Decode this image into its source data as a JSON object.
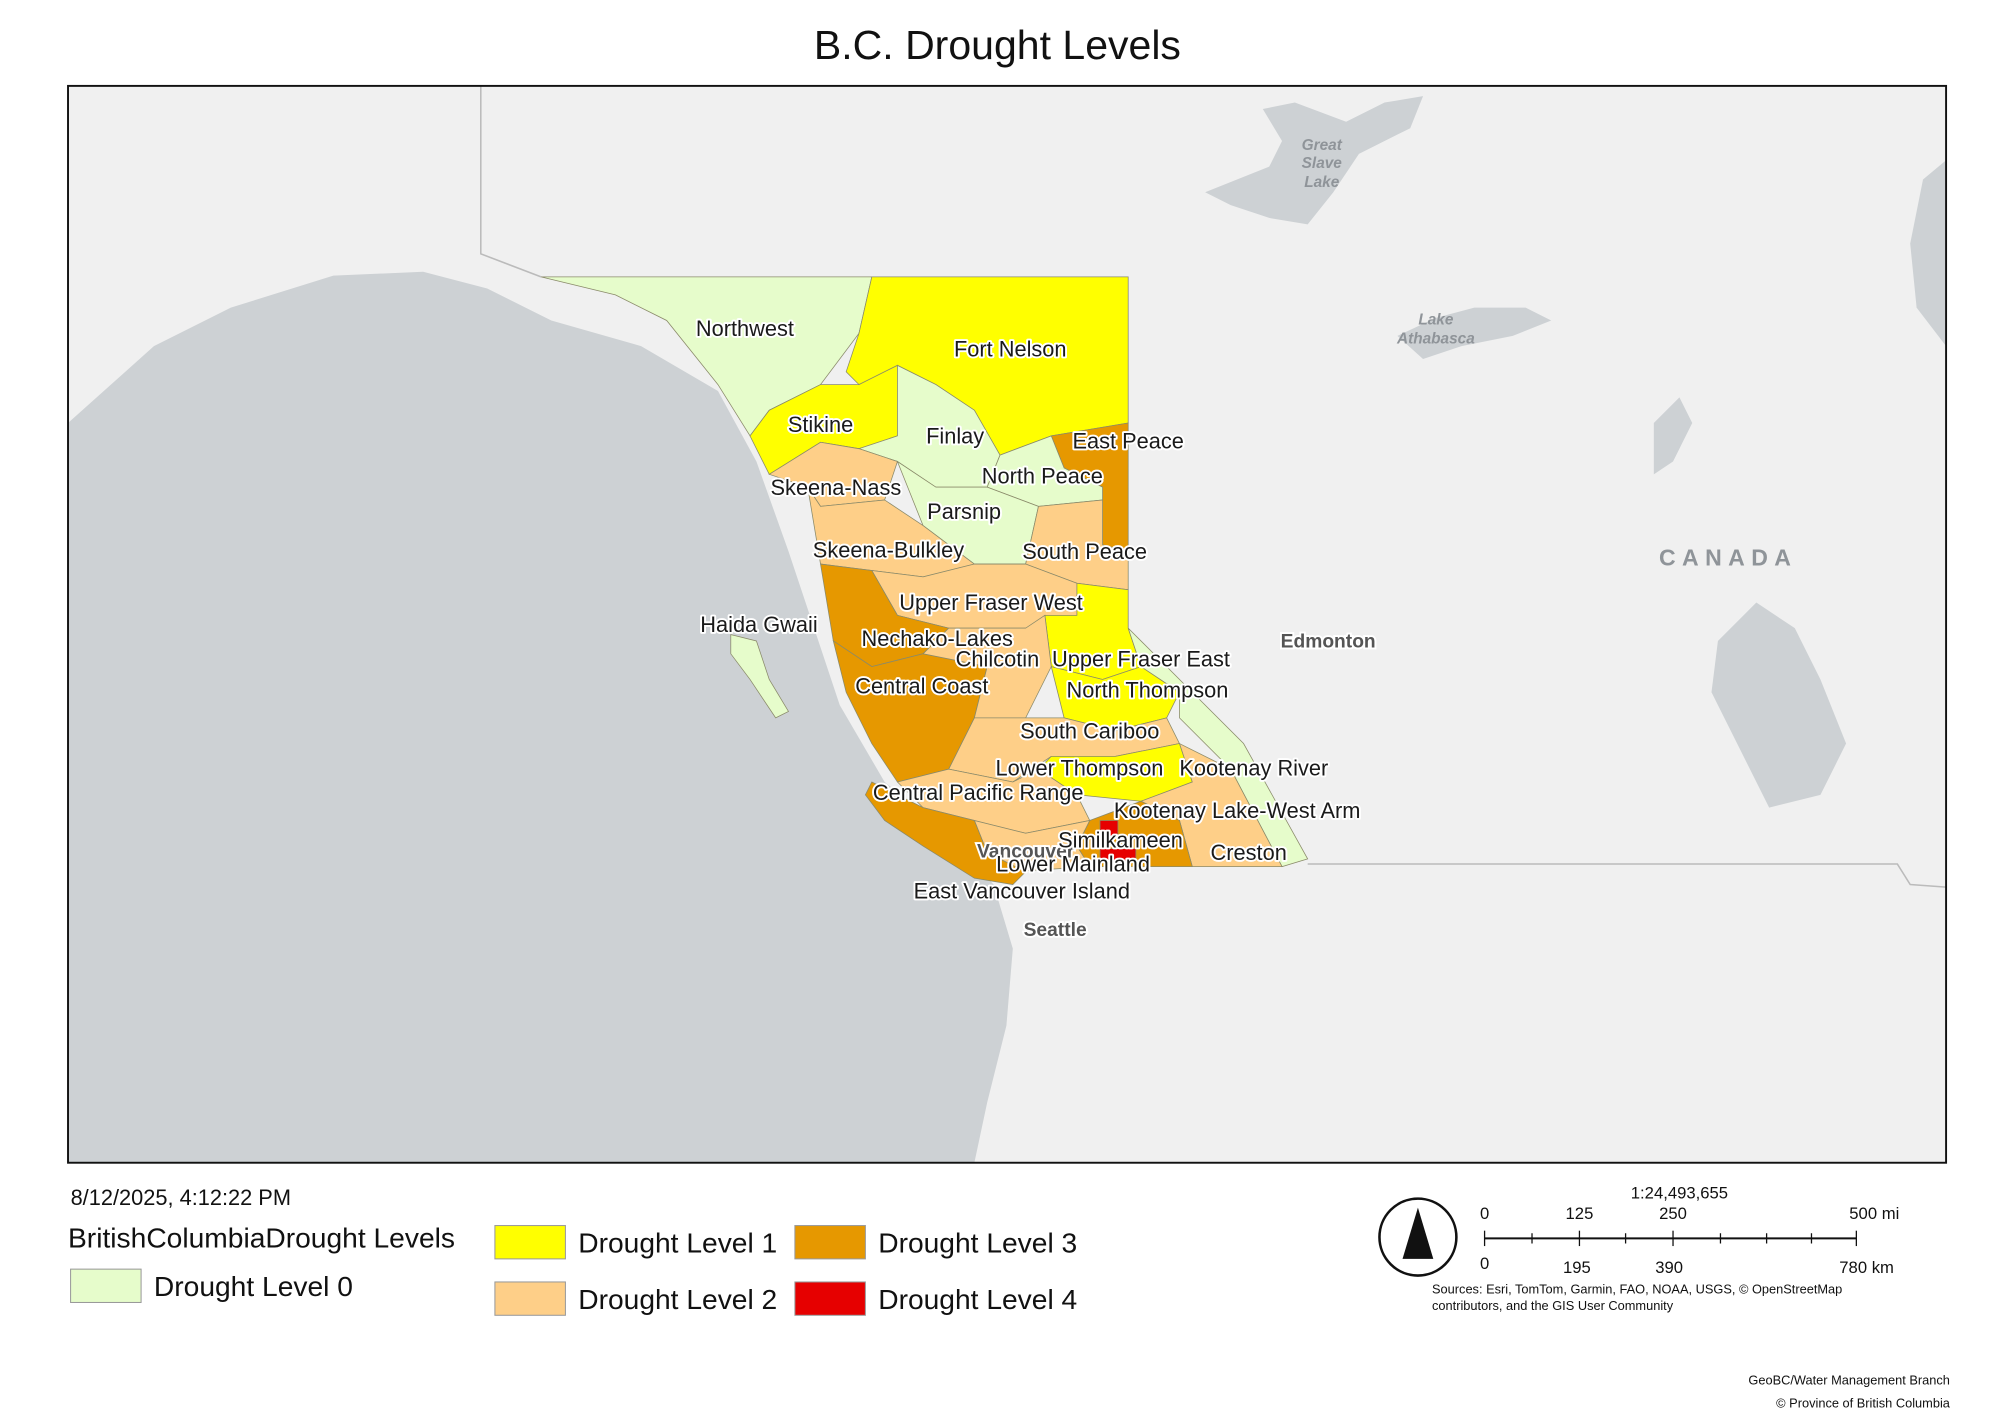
{
  "title": "B.C. Drought Levels",
  "timestamp": "8/12/2025, 4:12:22 PM",
  "legend": {
    "title": "BritishColumbiaDrought Levels",
    "items": [
      {
        "label": "Drought Level 0",
        "color": "#e6fccb"
      },
      {
        "label": "Drought Level 1",
        "color": "#ffff00"
      },
      {
        "label": "Drought Level 2",
        "color": "#fecf88"
      },
      {
        "label": "Drought Level 3",
        "color": "#e69800"
      },
      {
        "label": "Drought Level 4",
        "color": "#e60000"
      }
    ]
  },
  "regions": [
    "Northwest",
    "Fort Nelson",
    "Stikine",
    "Finlay",
    "East Peace",
    "North Peace",
    "Skeena-Nass",
    "Parsnip",
    "Skeena-Bulkley",
    "South Peace",
    "Upper Fraser West",
    "Haida Gwaii",
    "Nechako-Lakes",
    "Chilcotin",
    "Upper Fraser East",
    "Central Coast",
    "North Thompson",
    "South Cariboo",
    "Lower Thompson",
    "Kootenay River",
    "Central Pacific Range",
    "Kootenay Lake-West Arm",
    "Similkameen",
    "Creston",
    "Lower Mainland",
    "East Vancouver Island"
  ],
  "basemap_labels": {
    "great_slave_lake": [
      "Great",
      "Slave",
      "Lake"
    ],
    "lake_athabasca": [
      "Lake",
      "Athabasca"
    ],
    "country": "CANADA",
    "edmonton": "Edmonton",
    "vancouver": "Vancouver",
    "seattle": "Seattle"
  },
  "scale": {
    "ratio": "1:24,493,655",
    "miles": [
      "0",
      "125",
      "250",
      "500 mi"
    ],
    "km": [
      "0",
      "195",
      "390",
      "780 km"
    ]
  },
  "sources": [
    "Sources: Esri, TomTom, Garmin, FAO, NOAA, USGS, © OpenStreetMap",
    "contributors, and the GIS User Community"
  ],
  "credits": [
    "GeoBC/Water Management Branch",
    "© Province of British Columbia"
  ]
}
